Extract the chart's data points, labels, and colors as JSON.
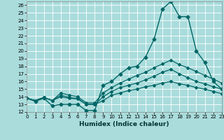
{
  "xlabel": "Humidex (Indice chaleur)",
  "background_color": "#aadcdc",
  "grid_color": "#ffffff",
  "line_color": "#006666",
  "xlim": [
    0,
    23
  ],
  "ylim": [
    12,
    26.5
  ],
  "yticks": [
    12,
    13,
    14,
    15,
    16,
    17,
    18,
    19,
    20,
    21,
    22,
    23,
    24,
    25,
    26
  ],
  "xticks": [
    0,
    1,
    2,
    3,
    4,
    5,
    6,
    7,
    8,
    9,
    10,
    11,
    12,
    13,
    14,
    15,
    16,
    17,
    18,
    19,
    20,
    21,
    22,
    23
  ],
  "series": [
    {
      "x": [
        0,
        1,
        2,
        3,
        4,
        5,
        6,
        7,
        8,
        9,
        10,
        11,
        12,
        13,
        14,
        15,
        16,
        17,
        18,
        19,
        20,
        21,
        22,
        23
      ],
      "y": [
        13.8,
        13.4,
        13.8,
        12.8,
        13.0,
        13.0,
        13.0,
        12.2,
        12.2,
        15.5,
        16.0,
        17.0,
        17.8,
        18.0,
        19.2,
        21.5,
        25.5,
        26.5,
        24.5,
        24.5,
        20.0,
        18.5,
        16.0,
        15.0
      ],
      "marker": "D",
      "markersize": 2.5,
      "linewidth": 1.0
    },
    {
      "x": [
        0,
        1,
        2,
        3,
        4,
        5,
        6,
        7,
        8,
        9,
        10,
        11,
        12,
        13,
        14,
        15,
        16,
        17,
        18,
        19,
        20,
        21,
        22,
        23
      ],
      "y": [
        13.8,
        13.5,
        13.9,
        13.5,
        14.5,
        14.2,
        14.0,
        13.2,
        13.2,
        14.5,
        15.2,
        15.8,
        16.3,
        16.8,
        17.2,
        17.8,
        18.3,
        18.8,
        18.2,
        17.8,
        17.3,
        16.8,
        16.3,
        15.8
      ],
      "marker": "D",
      "markersize": 2.0,
      "linewidth": 0.9
    },
    {
      "x": [
        0,
        1,
        2,
        3,
        4,
        5,
        6,
        7,
        8,
        9,
        10,
        11,
        12,
        13,
        14,
        15,
        16,
        17,
        18,
        19,
        20,
        21,
        22,
        23
      ],
      "y": [
        13.8,
        13.5,
        13.9,
        13.5,
        14.2,
        13.9,
        13.8,
        13.0,
        13.0,
        14.0,
        14.7,
        15.2,
        15.5,
        15.8,
        16.2,
        16.7,
        17.2,
        17.6,
        17.0,
        16.5,
        16.0,
        15.7,
        15.3,
        15.0
      ],
      "marker": "D",
      "markersize": 2.0,
      "linewidth": 0.9
    },
    {
      "x": [
        0,
        1,
        2,
        3,
        4,
        5,
        6,
        7,
        8,
        9,
        10,
        11,
        12,
        13,
        14,
        15,
        16,
        17,
        18,
        19,
        20,
        21,
        22,
        23
      ],
      "y": [
        13.8,
        13.5,
        13.9,
        13.5,
        14.0,
        13.8,
        13.7,
        13.0,
        13.0,
        13.5,
        14.2,
        14.5,
        14.8,
        15.0,
        15.3,
        15.5,
        15.8,
        16.0,
        15.7,
        15.5,
        15.2,
        15.0,
        14.7,
        14.4
      ],
      "marker": "D",
      "markersize": 2.0,
      "linewidth": 0.9
    }
  ]
}
